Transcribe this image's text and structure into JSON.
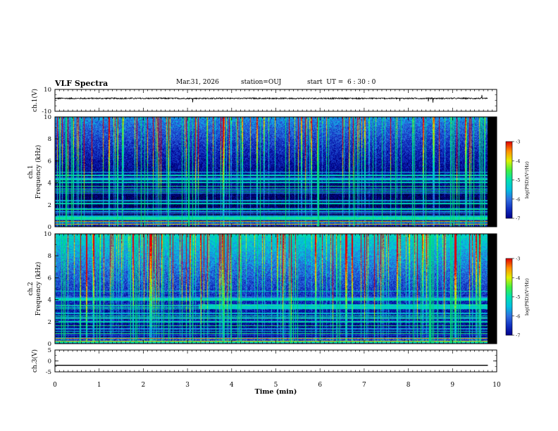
{
  "header": {
    "title": "VLF Spectra",
    "date": "Mar.31, 2026",
    "station": "station=OUJ",
    "start": "start  UT =  6 : 30 : 0"
  },
  "colors": {
    "background": "#000000",
    "spectral": [
      "#000000",
      "#000040",
      "#00008b",
      "#1030c0",
      "#2f6fe0",
      "#00c0e0",
      "#00e0b0",
      "#40f040",
      "#e0f000",
      "#ff9000",
      "#e00000"
    ]
  },
  "chart_data": [
    {
      "type": "line",
      "panel": "ch1-waveform",
      "ylabel": "ch.1(V)",
      "ylim": [
        -10,
        10
      ],
      "ytick_labels": [
        "10",
        "-10"
      ],
      "xlim": [
        0,
        10
      ],
      "series": [
        {
          "name": "ch.1",
          "mean": 1.8,
          "noise_amplitude": 0.6,
          "end_min": 9.8
        }
      ]
    },
    {
      "type": "heatmap",
      "panel": "ch1-spectrogram",
      "ylabel": "ch.1\nFrequency (kHz)",
      "ylim": [
        0,
        10
      ],
      "ytick_labels": [
        "0",
        "2",
        "4",
        "6",
        "8",
        "10"
      ],
      "xlim": [
        0,
        10
      ],
      "data_end_min": 9.8,
      "colorbar": {
        "label": "log(PSD)(V²/Hz)",
        "range": [
          -7,
          -3
        ],
        "tick_labels": [
          "-3",
          "-4",
          "-5",
          "-6",
          "-7"
        ]
      }
    },
    {
      "type": "heatmap",
      "panel": "ch2-spectrogram",
      "ylabel": "ch.2\nFrequency (kHz)",
      "ylim": [
        0,
        10
      ],
      "ytick_labels": [
        "0",
        "2",
        "4",
        "6",
        "8",
        "10"
      ],
      "xlim": [
        0,
        10
      ],
      "data_end_min": 9.8,
      "emission_band_khz": [
        3.2,
        3.6
      ],
      "emission_start_min": 3.25,
      "colorbar": {
        "label": "log(PSD)(V²/Hz)",
        "range": [
          -7,
          -3
        ],
        "tick_labels": [
          "-3",
          "-4",
          "-5",
          "-6",
          "-7"
        ]
      }
    },
    {
      "type": "line",
      "panel": "ch3-waveform",
      "ylabel": "ch.3(V)",
      "ylim": [
        -5,
        5
      ],
      "ytick_labels": [
        "5",
        "0",
        "-5"
      ],
      "xlim": [
        0,
        10
      ],
      "series": [
        {
          "name": "ch.3",
          "mean": -2.0,
          "noise_amplitude": 0,
          "end_min": 9.8
        }
      ]
    }
  ],
  "xaxis": {
    "label": "Time (min)",
    "range": [
      0,
      10
    ],
    "tick_labels": [
      "0",
      "1",
      "2",
      "3",
      "4",
      "5",
      "6",
      "7",
      "8",
      "9",
      "10"
    ]
  }
}
